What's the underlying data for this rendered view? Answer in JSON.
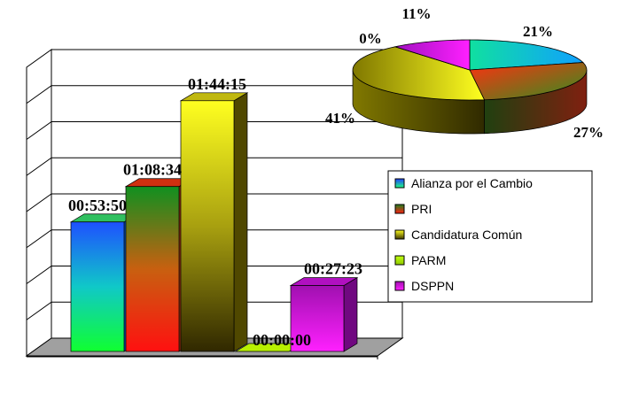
{
  "chart_data": [
    {
      "type": "bar",
      "categories": [
        "Alianza por el Cambio",
        "PRI",
        "Candidatura Común",
        "PARM",
        "DSPPN"
      ],
      "values": [
        3230,
        4114,
        6255,
        0,
        1643
      ],
      "data_labels": [
        "00:53:50",
        "01:08:34",
        "01:44:15",
        "00:00:00",
        "00:27:23"
      ],
      "ylim": [
        0,
        7200
      ],
      "grid": true,
      "three_d": true
    },
    {
      "type": "pie",
      "categories": [
        "Alianza por el Cambio",
        "PRI",
        "Candidatura Común",
        "PARM",
        "DSPPN"
      ],
      "values": [
        21,
        27,
        41,
        0,
        11
      ],
      "data_labels": [
        "21%",
        "27%",
        "41%",
        "0%",
        "11%"
      ],
      "three_d": true
    }
  ],
  "legend": {
    "placement": "right",
    "items": [
      {
        "label": "Alianza por el Cambio",
        "color": "#0080ff"
      },
      {
        "label": "PRI",
        "color": "#e05010"
      },
      {
        "label": "Candidatura Común",
        "color": "#c8c000"
      },
      {
        "label": "PARM",
        "color": "#b8f000"
      },
      {
        "label": "DSPPN",
        "color": "#e010e0"
      }
    ]
  },
  "colors": {
    "floor": "#a0a0a0",
    "grid": "#000000"
  }
}
